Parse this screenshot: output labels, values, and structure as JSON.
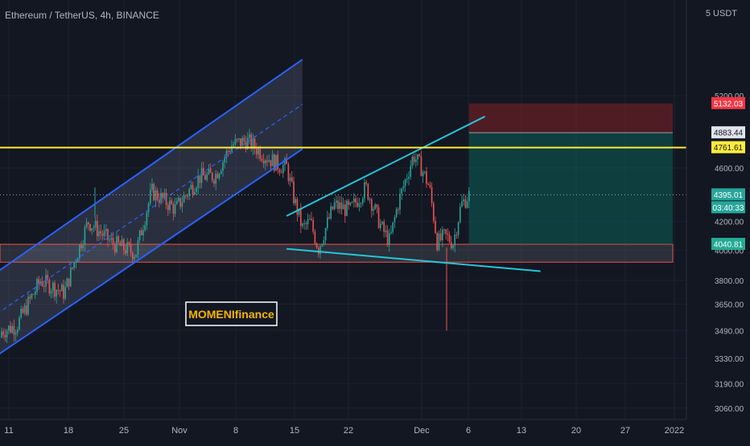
{
  "header": {
    "symbol_title": "Ethereum / TetherUS, 4h, BINANCE"
  },
  "currency": "5 USDT",
  "watermark": "MOMENIfinance",
  "colors": {
    "background": "#131722",
    "grid": "#1c2030",
    "up_candle": "#26a69a",
    "down_candle": "#ef5350",
    "channel": "#2962ff",
    "wedge": "#26c6da",
    "resistance": "#ffeb3b",
    "support_zone": "#ef5350",
    "stop_zone": "#7a1f1f",
    "target_zone": "#0f5e58",
    "text": "#b2b5be"
  },
  "chart_data": {
    "type": "candlestick",
    "title": "Ethereum / TetherUS, 4h, BINANCE",
    "x_tick_labels": [
      "11",
      "18",
      "25",
      "Nov",
      "8",
      "15",
      "22",
      "Dec",
      "6",
      "13",
      "20",
      "27",
      "2022"
    ],
    "y_tick_labels": [
      "5200.00",
      "4600.00",
      "4200.00",
      "4000.00",
      "3800.00",
      "3650.00",
      "3490.00",
      "3330.00",
      "3190.00",
      "3060.00"
    ],
    "price_labels": [
      {
        "value": "5132.03",
        "kind": "stop-loss"
      },
      {
        "value": "4883.44",
        "kind": "entry"
      },
      {
        "value": "4761.61",
        "kind": "resistance"
      },
      {
        "value": "4395.01",
        "kind": "last-price"
      },
      {
        "value": "03:40:33",
        "kind": "countdown"
      },
      {
        "value": "4040.81",
        "kind": "take-profit"
      }
    ],
    "ylim": [
      3030,
      5500
    ],
    "scale": "log",
    "price_path": [
      [
        "2021-10-08",
        3450
      ],
      [
        "2021-10-12",
        3520
      ],
      [
        "2021-10-15",
        3800
      ],
      [
        "2021-10-18",
        3720
      ],
      [
        "2021-10-21",
        4200
      ],
      [
        "2021-10-24",
        4050
      ],
      [
        "2021-10-27",
        3980
      ],
      [
        "2021-10-29",
        4420
      ],
      [
        "2021-11-01",
        4290
      ],
      [
        "2021-11-04",
        4530
      ],
      [
        "2021-11-06",
        4540
      ],
      [
        "2021-11-08",
        4780
      ],
      [
        "2021-11-10",
        4820
      ],
      [
        "2021-11-12",
        4710
      ],
      [
        "2021-11-14",
        4620
      ],
      [
        "2021-11-15",
        4610
      ],
      [
        "2021-11-16",
        4350
      ],
      [
        "2021-11-17",
        4150
      ],
      [
        "2021-11-18",
        4200
      ],
      [
        "2021-11-19",
        4010
      ],
      [
        "2021-11-21",
        4320
      ],
      [
        "2021-11-23",
        4280
      ],
      [
        "2021-11-25",
        4450
      ],
      [
        "2021-11-27",
        4150
      ],
      [
        "2021-11-28",
        4060
      ],
      [
        "2021-11-29",
        4320
      ],
      [
        "2021-12-01",
        4700
      ],
      [
        "2021-12-02",
        4600
      ],
      [
        "2021-12-03",
        4450
      ],
      [
        "2021-12-04",
        4050
      ],
      [
        "2021-12-05",
        4100
      ],
      [
        "2021-12-06",
        4050
      ],
      [
        "2021-12-07",
        4320
      ],
      [
        "2021-12-08",
        4395
      ]
    ],
    "annotations": {
      "ascending_channel": {
        "upper": [
          [
            "2021-10-08",
            3800
          ],
          [
            "2021-11-17",
            5530
          ]
        ],
        "lower": [
          [
            "2021-10-08",
            3300
          ],
          [
            "2021-11-17",
            4750
          ]
        ]
      },
      "rising_wedge_top": [
        [
          "2021-11-15",
          4240
        ],
        [
          "2021-12-10",
          5020
        ]
      ],
      "falling_support": [
        [
          "2021-11-15",
          4010
        ],
        [
          "2021-12-17",
          3860
        ]
      ],
      "horizontal_resistance": 4761.61,
      "support_zone": [
        3920,
        4040.81
      ],
      "position": {
        "entry": 4883.44,
        "stop_loss": 5132.03,
        "take_profit": 4040.81,
        "from": "2021-12-08",
        "to": "2021-12-31"
      }
    },
    "grid": true
  }
}
